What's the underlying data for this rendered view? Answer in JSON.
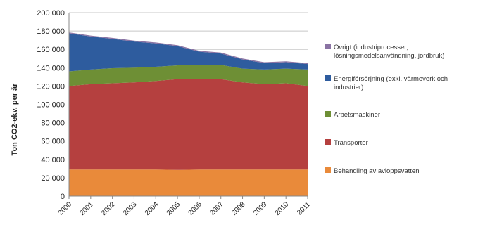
{
  "chart_data": {
    "type": "area",
    "stacked": true,
    "ylabel": "Ton CO2-ekv. per år",
    "xlabel": "",
    "ylim": [
      0,
      200000
    ],
    "yticks": [
      0,
      20000,
      40000,
      60000,
      80000,
      100000,
      120000,
      140000,
      160000,
      180000,
      200000
    ],
    "ytick_labels": [
      "0",
      "20 000",
      "40 000",
      "60 000",
      "80 000",
      "100 000",
      "120 000",
      "140 000",
      "160 000",
      "180 000",
      "200 000"
    ],
    "grid": true,
    "legend_position": "right",
    "x": [
      "2000",
      "2001",
      "2002",
      "2003",
      "2004",
      "2005",
      "2006",
      "2007",
      "2008",
      "2009",
      "2010",
      "2011"
    ],
    "series": [
      {
        "name": "Behandling av avloppsvatten",
        "color": "#e98a3a",
        "values": [
          29000,
          29000,
          29000,
          29000,
          29000,
          28500,
          29000,
          29000,
          29000,
          29000,
          29000,
          29000
        ]
      },
      {
        "name": "Transporter",
        "color": "#b5403f",
        "values": [
          91000,
          93000,
          94000,
          95000,
          96500,
          99000,
          98500,
          98500,
          95000,
          93000,
          94000,
          91000
        ]
      },
      {
        "name": "Arbetsmaskiner",
        "color": "#6e8f35",
        "values": [
          16000,
          16000,
          16500,
          16000,
          15500,
          15000,
          15500,
          15500,
          15000,
          16000,
          16000,
          18000
        ]
      },
      {
        "name": "Energiförsörjning (exkl. värmeverk och industrier)",
        "color": "#2e5c9e",
        "values": [
          41500,
          36000,
          32000,
          28500,
          25500,
          21000,
          14500,
          12500,
          10000,
          7000,
          7000,
          6000
        ]
      },
      {
        "name": "Övrigt (industriprocesser, lösningsmedelsanvändning, jordbruk)",
        "color": "#8a73a3",
        "values": [
          1000,
          1000,
          1000,
          1000,
          1000,
          1000,
          1000,
          1000,
          1000,
          1000,
          1000,
          1000
        ]
      }
    ],
    "legend": [
      [
        "Övrigt (industriprocesser,",
        "lösningsmedelsanvändning, jordbruk)"
      ],
      [
        "Energiförsörjning (exkl. värmeverk och",
        "industrier)"
      ],
      [
        "Arbetsmaskiner"
      ],
      [
        "Transporter"
      ],
      [
        "Behandling av avloppsvatten"
      ]
    ]
  }
}
